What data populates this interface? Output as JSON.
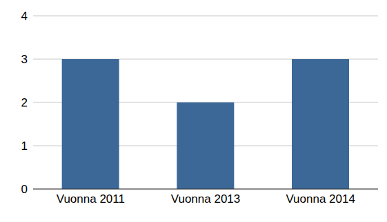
{
  "chart_data": {
    "type": "bar",
    "categories": [
      "Vuonna 2011",
      "Vuonna 2013",
      "Vuonna 2014"
    ],
    "values": [
      3,
      2,
      3
    ],
    "color": "#3b6897",
    "ylim": [
      0,
      4
    ],
    "yticks": [
      0,
      1,
      2,
      3,
      4
    ],
    "grid": true
  }
}
